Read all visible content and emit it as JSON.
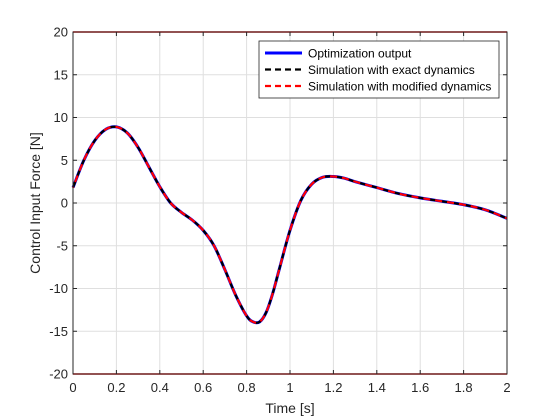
{
  "chart_data": {
    "type": "line",
    "xlabel": "Time [s]",
    "ylabel": "Control Input Force [N]",
    "xlim": [
      0,
      2
    ],
    "ylim": [
      -20,
      20
    ],
    "xticks": [
      0,
      0.2,
      0.4,
      0.6,
      0.8,
      1,
      1.2,
      1.4,
      1.6,
      1.8,
      2
    ],
    "xtick_labels": [
      "0",
      "0.2",
      "0.4",
      "0.6",
      "0.8",
      "1",
      "1.2",
      "1.4",
      "1.6",
      "1.8",
      "2"
    ],
    "yticks": [
      -20,
      -15,
      -10,
      -5,
      0,
      5,
      10,
      15,
      20
    ],
    "ytick_labels": [
      "-20",
      "-15",
      "-10",
      "-5",
      "0",
      "5",
      "10",
      "15",
      "20"
    ],
    "grid": true,
    "legend_position": "top-right",
    "x": [
      0,
      0.05,
      0.1,
      0.15,
      0.2,
      0.25,
      0.3,
      0.35,
      0.4,
      0.45,
      0.5,
      0.55,
      0.6,
      0.65,
      0.7,
      0.75,
      0.8,
      0.83,
      0.86,
      0.89,
      0.92,
      0.95,
      1.0,
      1.05,
      1.1,
      1.15,
      1.2,
      1.25,
      1.3,
      1.4,
      1.5,
      1.6,
      1.7,
      1.8,
      1.9,
      2.0
    ],
    "series": [
      {
        "name": "Optimization output",
        "color": "#0000ff",
        "style": "solid",
        "values": [
          1.8,
          5.0,
          7.3,
          8.6,
          8.9,
          8.2,
          6.5,
          4.2,
          1.9,
          0.0,
          -1.1,
          -2.0,
          -3.2,
          -5.0,
          -7.8,
          -10.8,
          -13.2,
          -13.9,
          -13.9,
          -12.8,
          -10.6,
          -7.8,
          -3.2,
          0.3,
          2.2,
          3.0,
          3.1,
          2.9,
          2.5,
          1.8,
          1.1,
          0.6,
          0.2,
          -0.2,
          -0.8,
          -1.8
        ]
      },
      {
        "name": "Simulation with exact dynamics",
        "color": "#000000",
        "style": "dashed",
        "values": [
          1.8,
          5.0,
          7.3,
          8.6,
          8.9,
          8.2,
          6.5,
          4.2,
          1.9,
          0.0,
          -1.1,
          -2.0,
          -3.2,
          -5.0,
          -7.8,
          -10.8,
          -13.2,
          -13.9,
          -13.9,
          -12.8,
          -10.6,
          -7.8,
          -3.2,
          0.3,
          2.2,
          3.0,
          3.1,
          2.9,
          2.5,
          1.8,
          1.1,
          0.6,
          0.2,
          -0.2,
          -0.8,
          -1.8
        ]
      },
      {
        "name": "Simulation with modified dynamics",
        "color": "#ff0000",
        "style": "dashed",
        "values": [
          1.8,
          5.0,
          7.3,
          8.6,
          8.9,
          8.2,
          6.5,
          4.2,
          1.9,
          0.0,
          -1.1,
          -2.0,
          -3.2,
          -5.0,
          -7.8,
          -10.8,
          -13.2,
          -13.9,
          -13.9,
          -12.8,
          -10.6,
          -7.8,
          -3.2,
          0.3,
          2.2,
          3.0,
          3.1,
          2.9,
          2.5,
          1.8,
          1.1,
          0.6,
          0.2,
          -0.2,
          -0.8,
          -1.8
        ]
      }
    ],
    "reference_lines": [
      {
        "y": 20,
        "color": "#ff0000"
      },
      {
        "y": -20,
        "color": "#ff0000"
      }
    ]
  }
}
